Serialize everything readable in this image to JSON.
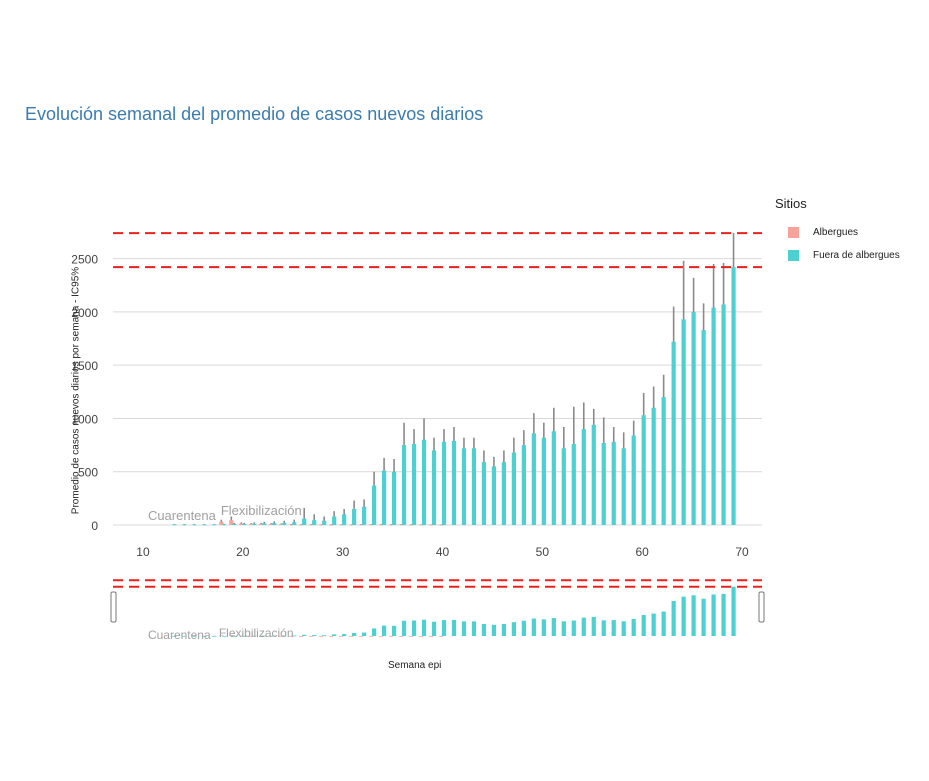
{
  "chart_data": {
    "type": "bar",
    "title": "Evolución semanal del promedio de casos nuevos diarios",
    "ylabel": "Promedio de casos nuevos diarios por semana - IC95%",
    "xlabel": "Semana epi",
    "xlim": [
      7,
      72
    ],
    "ylim": [
      0,
      2750
    ],
    "x_ticks": [
      10,
      20,
      30,
      40,
      50,
      60,
      70
    ],
    "y_ticks": [
      0,
      500,
      1000,
      1500,
      2000,
      2500
    ],
    "grid": true,
    "legend": {
      "title": "Sitios",
      "position": "right",
      "entries": [
        {
          "name": "Albergues",
          "color": "#f8a39a"
        },
        {
          "name": "Fuera de albergues",
          "color": "#4dd0d2"
        }
      ]
    },
    "annotations": [
      "Cuarentena",
      "Flexibilización"
    ],
    "reference_lines": [
      2420,
      2740
    ],
    "series": [
      {
        "name": "Fuera de albergues",
        "color": "#4dd0d2",
        "x": [
          13,
          14,
          15,
          16,
          17,
          18,
          19,
          20,
          21,
          22,
          23,
          24,
          25,
          26,
          27,
          28,
          29,
          30,
          31,
          32,
          33,
          34,
          35,
          36,
          37,
          38,
          39,
          40,
          41,
          42,
          43,
          44,
          45,
          46,
          47,
          48,
          49,
          50,
          51,
          52,
          53,
          54,
          55,
          56,
          57,
          58,
          59,
          60,
          61,
          62,
          63,
          64,
          65,
          66,
          67,
          68,
          69
        ],
        "values": [
          5,
          5,
          5,
          5,
          5,
          5,
          10,
          10,
          12,
          15,
          18,
          20,
          25,
          60,
          45,
          40,
          80,
          100,
          150,
          170,
          370,
          510,
          500,
          750,
          760,
          800,
          700,
          780,
          790,
          720,
          720,
          590,
          550,
          590,
          680,
          750,
          860,
          820,
          880,
          720,
          760,
          900,
          940,
          770,
          780,
          720,
          840,
          1030,
          1100,
          1200,
          1720,
          1930,
          2000,
          1830,
          2040,
          2070,
          2420
        ],
        "ci_low": [
          0,
          0,
          0,
          0,
          0,
          0,
          0,
          0,
          0,
          0,
          0,
          0,
          0,
          0,
          0,
          0,
          0,
          0,
          0,
          0,
          280,
          400,
          400,
          560,
          560,
          620,
          560,
          620,
          640,
          580,
          580,
          490,
          460,
          500,
          580,
          640,
          700,
          680,
          720,
          560,
          620,
          720,
          760,
          620,
          640,
          600,
          700,
          860,
          920,
          1000,
          1420,
          1500,
          1660,
          1540,
          1680,
          1700,
          2100
        ],
        "ci_high": [
          10,
          10,
          10,
          10,
          10,
          10,
          20,
          20,
          25,
          30,
          35,
          40,
          50,
          160,
          100,
          80,
          130,
          150,
          230,
          240,
          500,
          630,
          620,
          960,
          900,
          1000,
          820,
          900,
          920,
          820,
          820,
          700,
          640,
          700,
          820,
          890,
          1050,
          960,
          1100,
          920,
          1110,
          1150,
          1090,
          1010,
          920,
          870,
          980,
          1240,
          1300,
          1410,
          2050,
          2480,
          2320,
          2080,
          2450,
          2460,
          2740
        ]
      },
      {
        "name": "Albergues",
        "color": "#f8a39a",
        "x": [
          18,
          19,
          20,
          21,
          22,
          23,
          24,
          25,
          26,
          27,
          28,
          29,
          30,
          31,
          32,
          33,
          34,
          35,
          36,
          37,
          38,
          39,
          40
        ],
        "values": [
          30,
          45,
          15,
          10,
          12,
          10,
          8,
          6,
          5,
          5,
          5,
          4,
          4,
          4,
          5,
          6,
          6,
          5,
          5,
          4,
          4,
          3,
          3
        ],
        "ci_low": [
          10,
          20,
          5,
          3,
          4,
          3,
          2,
          2,
          2,
          2,
          2,
          1,
          1,
          1,
          2,
          2,
          2,
          2,
          2,
          1,
          1,
          1,
          1
        ],
        "ci_high": [
          50,
          80,
          25,
          18,
          20,
          17,
          14,
          10,
          9,
          9,
          8,
          7,
          7,
          7,
          9,
          10,
          10,
          9,
          9,
          8,
          7,
          6,
          6
        ]
      }
    ]
  }
}
